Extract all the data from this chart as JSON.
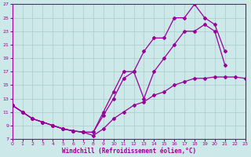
{
  "xlabel": "Windchill (Refroidissement éolien,°C)",
  "bg_color": "#cce8e8",
  "grid_color": "#aacccc",
  "line_color": "#990099",
  "xlim": [
    0,
    23
  ],
  "ylim": [
    7,
    27
  ],
  "xticks": [
    0,
    1,
    2,
    3,
    4,
    5,
    6,
    7,
    8,
    9,
    10,
    11,
    12,
    13,
    14,
    15,
    16,
    17,
    18,
    19,
    20,
    21,
    22,
    23
  ],
  "yticks": [
    7,
    9,
    11,
    13,
    15,
    17,
    19,
    21,
    23,
    25,
    27
  ],
  "curve1_x": [
    0,
    1,
    2,
    3,
    4,
    5,
    6,
    7,
    8,
    9,
    10,
    11,
    12,
    13,
    14,
    15,
    16,
    17,
    18,
    19,
    20,
    21
  ],
  "curve1_y": [
    12,
    11,
    10,
    9.5,
    9,
    8.5,
    8.2,
    8,
    8,
    11,
    14,
    17,
    17,
    20,
    22,
    22,
    25,
    25,
    27,
    25,
    24,
    20
  ],
  "curve2_x": [
    0,
    1,
    2,
    3,
    4,
    5,
    6,
    7,
    8,
    9,
    10,
    11,
    12,
    13,
    14,
    15,
    16,
    17,
    18,
    19,
    20,
    21
  ],
  "curve2_y": [
    12,
    11,
    10,
    9.5,
    9,
    8.5,
    8.2,
    8,
    8,
    10.5,
    13,
    16,
    17,
    13,
    17,
    19,
    21,
    23,
    23,
    24,
    23,
    18
  ],
  "curve3_x": [
    0,
    1,
    2,
    3,
    4,
    5,
    6,
    7,
    8,
    9,
    10,
    11,
    12,
    13,
    14,
    15,
    16,
    17,
    18,
    19,
    20,
    21,
    22,
    23
  ],
  "curve3_y": [
    12,
    11,
    10,
    9.5,
    9,
    8.5,
    8.2,
    8,
    7.5,
    8.5,
    10,
    11,
    12,
    12.5,
    13.5,
    14,
    15,
    15.5,
    16,
    16,
    16.2,
    16.2,
    16.2,
    16
  ]
}
